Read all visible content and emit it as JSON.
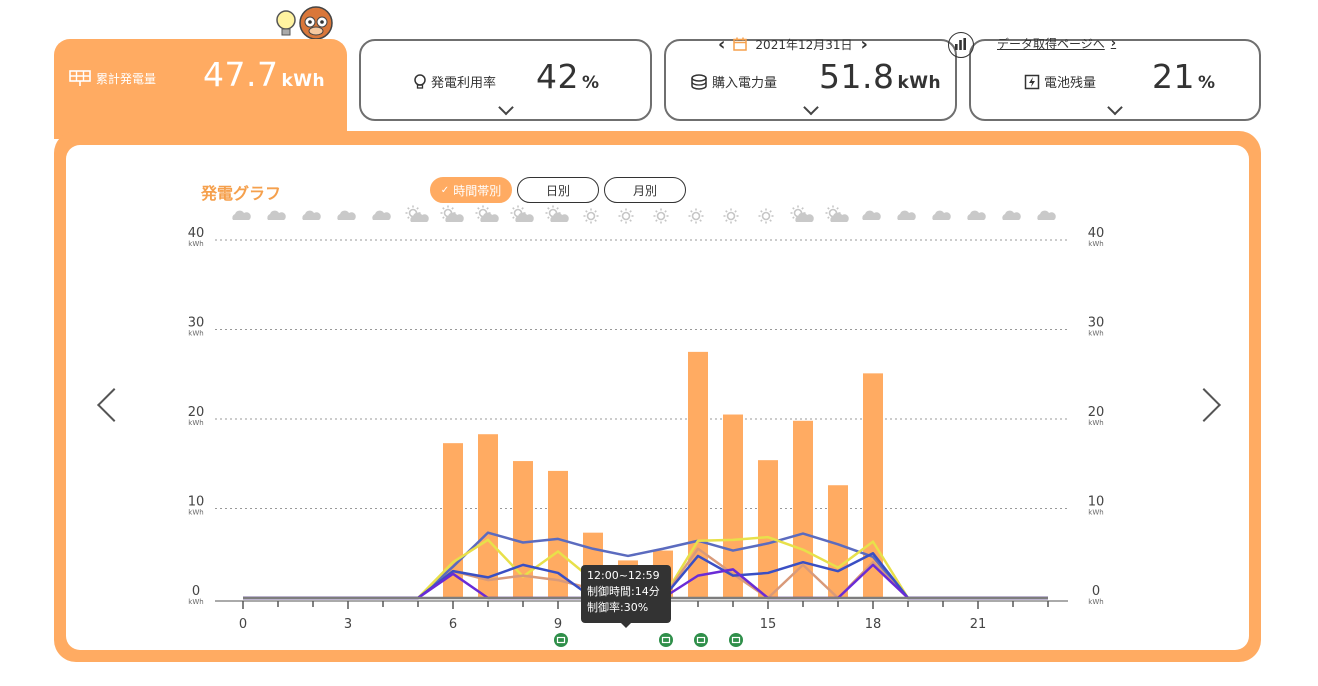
{
  "stats": [
    {
      "label": "累計発電量",
      "value": "47.7",
      "unit": "kWh",
      "icon": "solar-panel-icon",
      "active": true
    },
    {
      "label": "発電利用率",
      "value": "42",
      "unit": "%",
      "icon": "lightbulb-icon"
    },
    {
      "label": "購入電力量",
      "value": "51.8",
      "unit": "kWh",
      "icon": "coins-icon"
    },
    {
      "label": "電池残量",
      "value": "21",
      "unit": "%",
      "icon": "battery-bolt-icon"
    }
  ],
  "graph": {
    "title": "発電グラフ",
    "segments": [
      "時間帯別",
      "日別",
      "月別"
    ],
    "selected_segment": "時間帯別",
    "date": "2021年12月31日",
    "data_link": "データ取得ページへ"
  },
  "weather": [
    "cloud",
    "cloud",
    "cloud",
    "cloud",
    "cloud",
    "sun-cloud",
    "sun-cloud",
    "sun-cloud",
    "sun-cloud",
    "sun-cloud",
    "sun",
    "sun",
    "sun",
    "sun",
    "sun",
    "sun",
    "sun-cloud",
    "sun-cloud",
    "cloud",
    "cloud",
    "cloud",
    "cloud",
    "cloud",
    "cloud"
  ],
  "tooltip": {
    "time": "12:00~12:59",
    "line1": "制御時間:14分",
    "line2": "制御率:30%"
  },
  "control_markers": [
    9,
    12,
    13,
    14
  ],
  "chart_data": {
    "type": "bar",
    "title": "",
    "x": [
      0,
      1,
      2,
      3,
      4,
      5,
      6,
      7,
      8,
      9,
      10,
      11,
      12,
      13,
      14,
      15,
      16,
      17,
      18,
      19,
      20,
      21,
      22,
      23
    ],
    "x_ticks": [
      0,
      3,
      6,
      9,
      12,
      15,
      18,
      21
    ],
    "x_tick_labels": [
      "0",
      "3",
      "6",
      "9",
      "",
      "15",
      "18",
      "21"
    ],
    "y_ticks": [
      0,
      10,
      20,
      30,
      40
    ],
    "y_unit": "kWh",
    "ylim": [
      0,
      40
    ],
    "grid": true,
    "bars": [
      0,
      0,
      0,
      0,
      0,
      0,
      17.3,
      18.3,
      15.3,
      14.2,
      7.3,
      4.2,
      5.3,
      27.5,
      20.5,
      15.4,
      19.8,
      12.6,
      25.1,
      0,
      0,
      0,
      0,
      0
    ],
    "bar_color": "#ffab62",
    "series": [
      {
        "color": "#5b6bbf",
        "values": [
          0,
          0,
          0,
          0,
          0,
          0,
          3.5,
          7.3,
          6.2,
          6.6,
          5.5,
          4.7,
          5.5,
          6.4,
          5.3,
          6.1,
          7.2,
          6.0,
          4.6,
          0,
          0,
          0,
          0,
          0
        ]
      },
      {
        "color": "#e8e04a",
        "values": [
          0,
          0,
          0,
          0,
          0,
          0,
          4.0,
          6.5,
          2.4,
          5.2,
          2.0,
          0,
          0,
          6.4,
          6.5,
          6.8,
          5.4,
          3.4,
          6.3,
          0,
          0,
          0,
          0,
          0
        ]
      },
      {
        "color": "#d99a7a",
        "values": [
          0,
          0,
          0,
          0,
          0,
          0,
          3.0,
          2.0,
          2.5,
          2.0,
          1.0,
          0,
          0,
          5.5,
          2.7,
          0,
          3.7,
          0,
          4.0,
          0,
          0,
          0,
          0,
          0
        ]
      },
      {
        "color": "#3a4fc4",
        "values": [
          0,
          0,
          0,
          0,
          0,
          0,
          3.0,
          2.3,
          3.7,
          2.8,
          0,
          0,
          0,
          4.7,
          2.5,
          2.8,
          4.0,
          3.0,
          5.0,
          0,
          0,
          0,
          0,
          0
        ]
      },
      {
        "color": "#6a2bd6",
        "values": [
          0,
          0,
          0,
          0,
          0,
          0,
          2.7,
          0,
          0,
          0,
          0,
          0,
          0,
          2.5,
          3.2,
          0,
          0,
          0,
          3.7,
          0,
          0,
          0,
          0,
          0
        ]
      },
      {
        "color": "#7d7d7d",
        "values": [
          0,
          0,
          0,
          0,
          0,
          0,
          0,
          0,
          0,
          0,
          0,
          0,
          0,
          0,
          0,
          0,
          0,
          0,
          0,
          0,
          0,
          0,
          0,
          0
        ]
      }
    ]
  }
}
